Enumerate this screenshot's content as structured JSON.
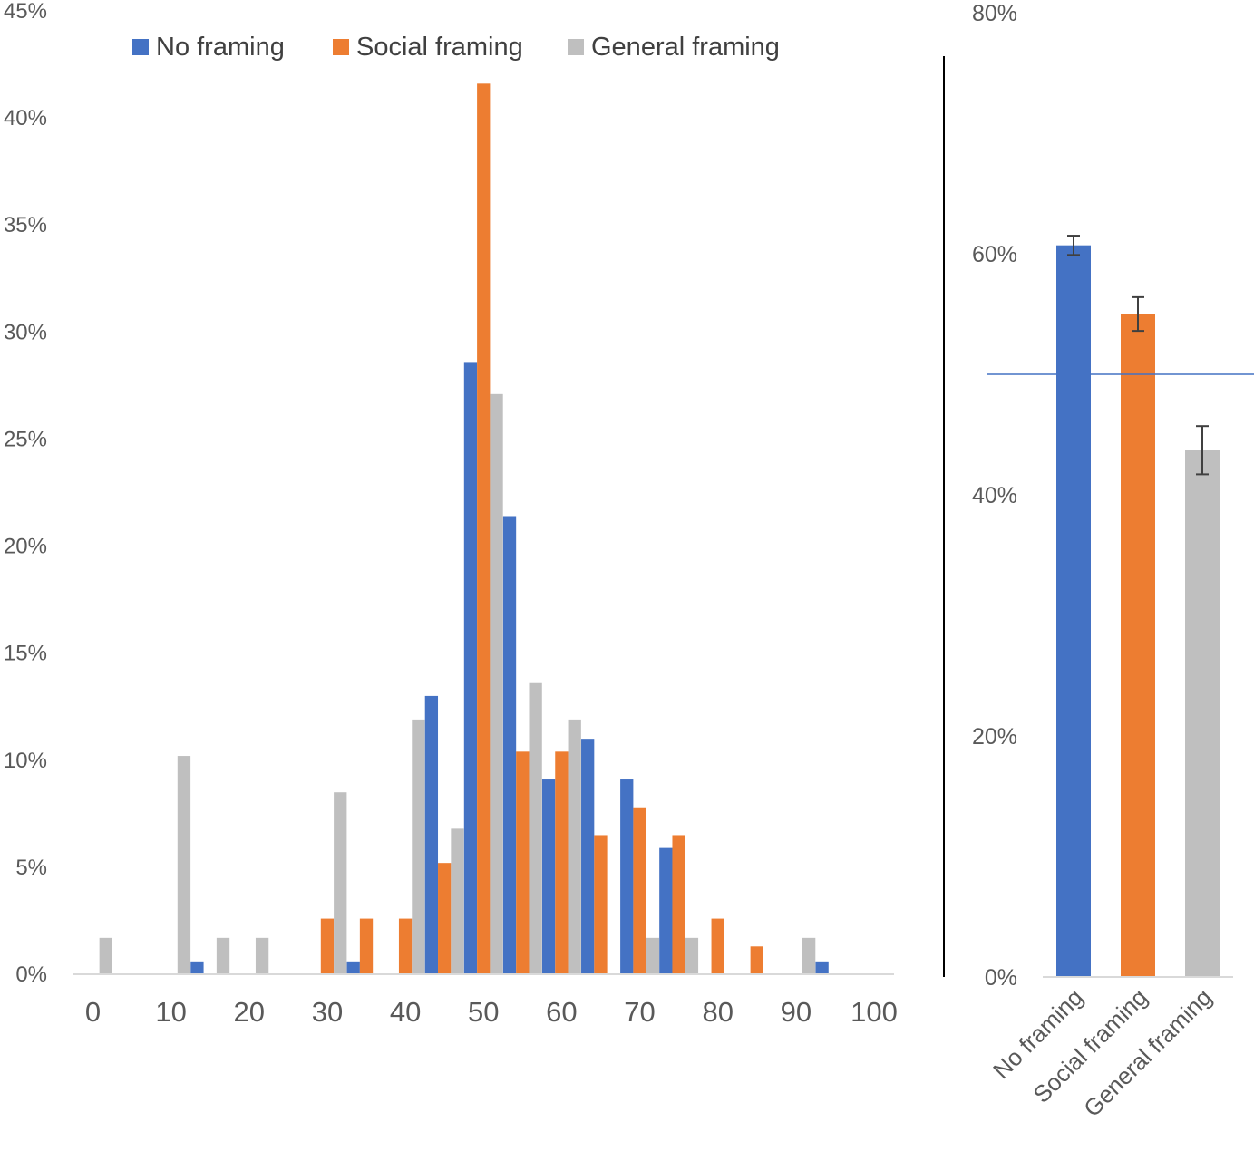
{
  "chart_data": [
    {
      "type": "bar",
      "title": "",
      "xlabel": "",
      "ylabel": "",
      "x": [
        0,
        5,
        10,
        15,
        20,
        25,
        30,
        35,
        40,
        45,
        50,
        55,
        60,
        65,
        70,
        75,
        80,
        85,
        90,
        95,
        100
      ],
      "x_ticks": [
        "0",
        "10",
        "20",
        "30",
        "40",
        "50",
        "60",
        "70",
        "80",
        "90",
        "100"
      ],
      "y_ticks": [
        "0%",
        "5%",
        "10%",
        "15%",
        "20%",
        "25%",
        "30%",
        "35%",
        "40%",
        "45%"
      ],
      "ylim": [
        0,
        45
      ],
      "y_unit": "%",
      "grid": false,
      "legend_position": "top",
      "series": [
        {
          "name": "No framing",
          "color": "#4472C4",
          "values": [
            0,
            0,
            0,
            0.6,
            0,
            0,
            0,
            0.6,
            0,
            13.0,
            28.6,
            21.4,
            9.1,
            11.0,
            9.1,
            5.9,
            0,
            0,
            0,
            0.6,
            0
          ]
        },
        {
          "name": "Social framing",
          "color": "#ED7D31",
          "values": [
            0,
            0,
            0,
            0,
            0,
            0,
            2.6,
            2.6,
            2.6,
            5.2,
            41.6,
            10.4,
            10.4,
            6.5,
            7.8,
            6.5,
            2.6,
            1.3,
            0,
            0,
            0
          ]
        },
        {
          "name": "General framing",
          "color": "#BFBFBF",
          "values": [
            1.7,
            0,
            10.2,
            1.7,
            1.7,
            0,
            8.5,
            0,
            11.9,
            6.8,
            27.1,
            13.6,
            11.9,
            0,
            1.7,
            1.7,
            0,
            0,
            1.7,
            0,
            0
          ]
        }
      ]
    },
    {
      "type": "bar",
      "title": "",
      "xlabel": "",
      "ylabel": "",
      "categories": [
        "No framing",
        "Social framing",
        "General framing"
      ],
      "values": [
        60.7,
        55.0,
        43.7
      ],
      "error": [
        0.8,
        1.4,
        2.0
      ],
      "colors": [
        "#4472C4",
        "#ED7D31",
        "#BFBFBF"
      ],
      "y_ticks": [
        "0%",
        "20%",
        "40%",
        "60%",
        "80%"
      ],
      "ylim": [
        0,
        80
      ],
      "y_unit": "%",
      "reference_line": 50,
      "reference_line_color": "#4472C4",
      "grid": false
    }
  ]
}
